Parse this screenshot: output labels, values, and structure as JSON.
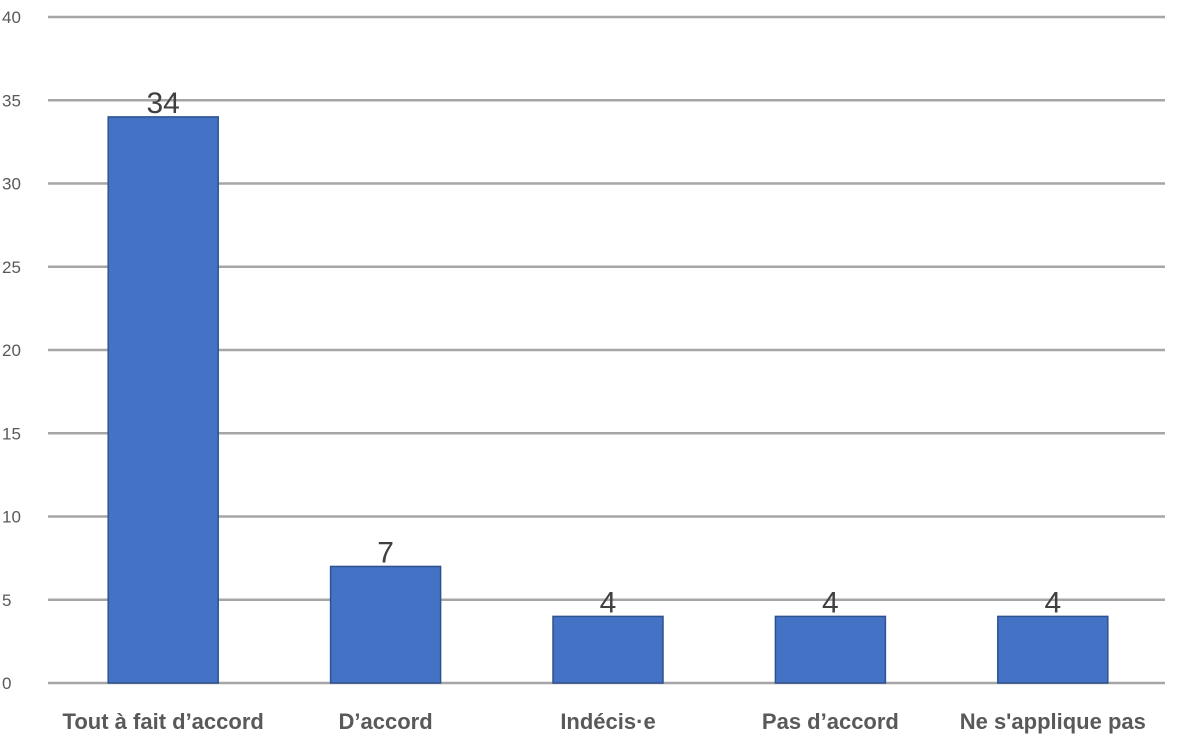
{
  "chart_data": {
    "type": "bar",
    "title": "",
    "xlabel": "",
    "ylabel": "",
    "categories": [
      "Tout à fait d’accord",
      "D’accord",
      "Indécis·e",
      "Pas d’accord",
      "Ne s'applique pas"
    ],
    "values": [
      34,
      7,
      4,
      4,
      4
    ],
    "data_labels": [
      "34",
      "7",
      "4",
      "4",
      "4"
    ],
    "ylim": [
      0,
      40
    ],
    "yticks": [
      0,
      5,
      10,
      15,
      20,
      25,
      30,
      35,
      40
    ],
    "grid": true,
    "legend": "none",
    "bar_color": "#4472c4",
    "bar_border_color": "#2f528f",
    "grid_color": "#a6a6a6"
  }
}
